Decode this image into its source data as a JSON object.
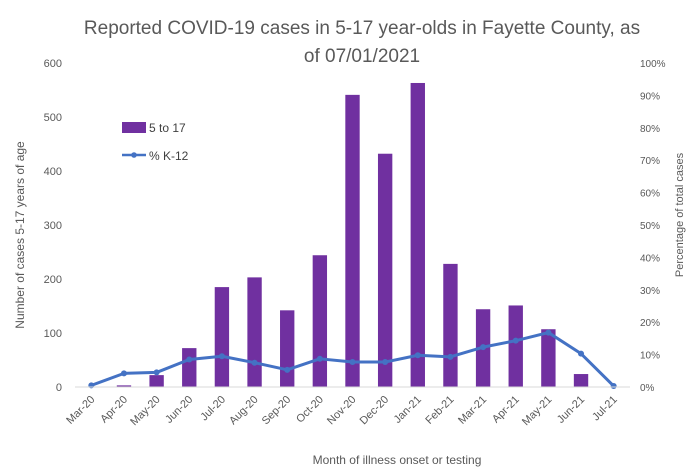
{
  "chart_data": {
    "type": "bar",
    "title_line1": "Reported COVID-19 cases in 5-17 year-olds in Fayette County, as",
    "title_line2": "of 07/01/2021",
    "xlabel": "Month of illness onset or testing",
    "ylabel": "Number of cases 5-17 years of age",
    "y2label": "Percentage of total cases",
    "categories": [
      "Mar-20",
      "Apr-20",
      "May-20",
      "Jun-20",
      "Jul-20",
      "Aug-20",
      "Sep-20",
      "Oct-20",
      "Nov-20",
      "Dec-20",
      "Jan-21",
      "Feb-21",
      "Mar-21",
      "Apr-21",
      "May-21",
      "Jun-21",
      "Jul-21"
    ],
    "ylim": [
      0,
      600
    ],
    "y_ticks": [
      "0",
      "100",
      "200",
      "300",
      "400",
      "500",
      "600"
    ],
    "y2lim": [
      0,
      100
    ],
    "y2_ticks": [
      "0%",
      "10%",
      "20%",
      "30%",
      "40%",
      "50%",
      "60%",
      "70%",
      "80%",
      "90%",
      "100%"
    ],
    "series": [
      {
        "name": "5 to 17",
        "kind": "bar",
        "color": "#7030A0",
        "values": [
          0,
          3,
          22,
          72,
          185,
          203,
          142,
          244,
          541,
          432,
          563,
          228,
          144,
          151,
          107,
          24,
          0
        ]
      },
      {
        "name": "% K-12",
        "kind": "line",
        "axis": "right",
        "color": "#4472C4",
        "values": [
          0.5,
          4.2,
          4.5,
          8.5,
          9.5,
          7.5,
          5.3,
          8.7,
          7.7,
          7.7,
          9.8,
          9.3,
          12.3,
          14.3,
          16.8,
          10.3,
          0.3
        ]
      }
    ],
    "legend_position": "top-left",
    "grid": false
  }
}
